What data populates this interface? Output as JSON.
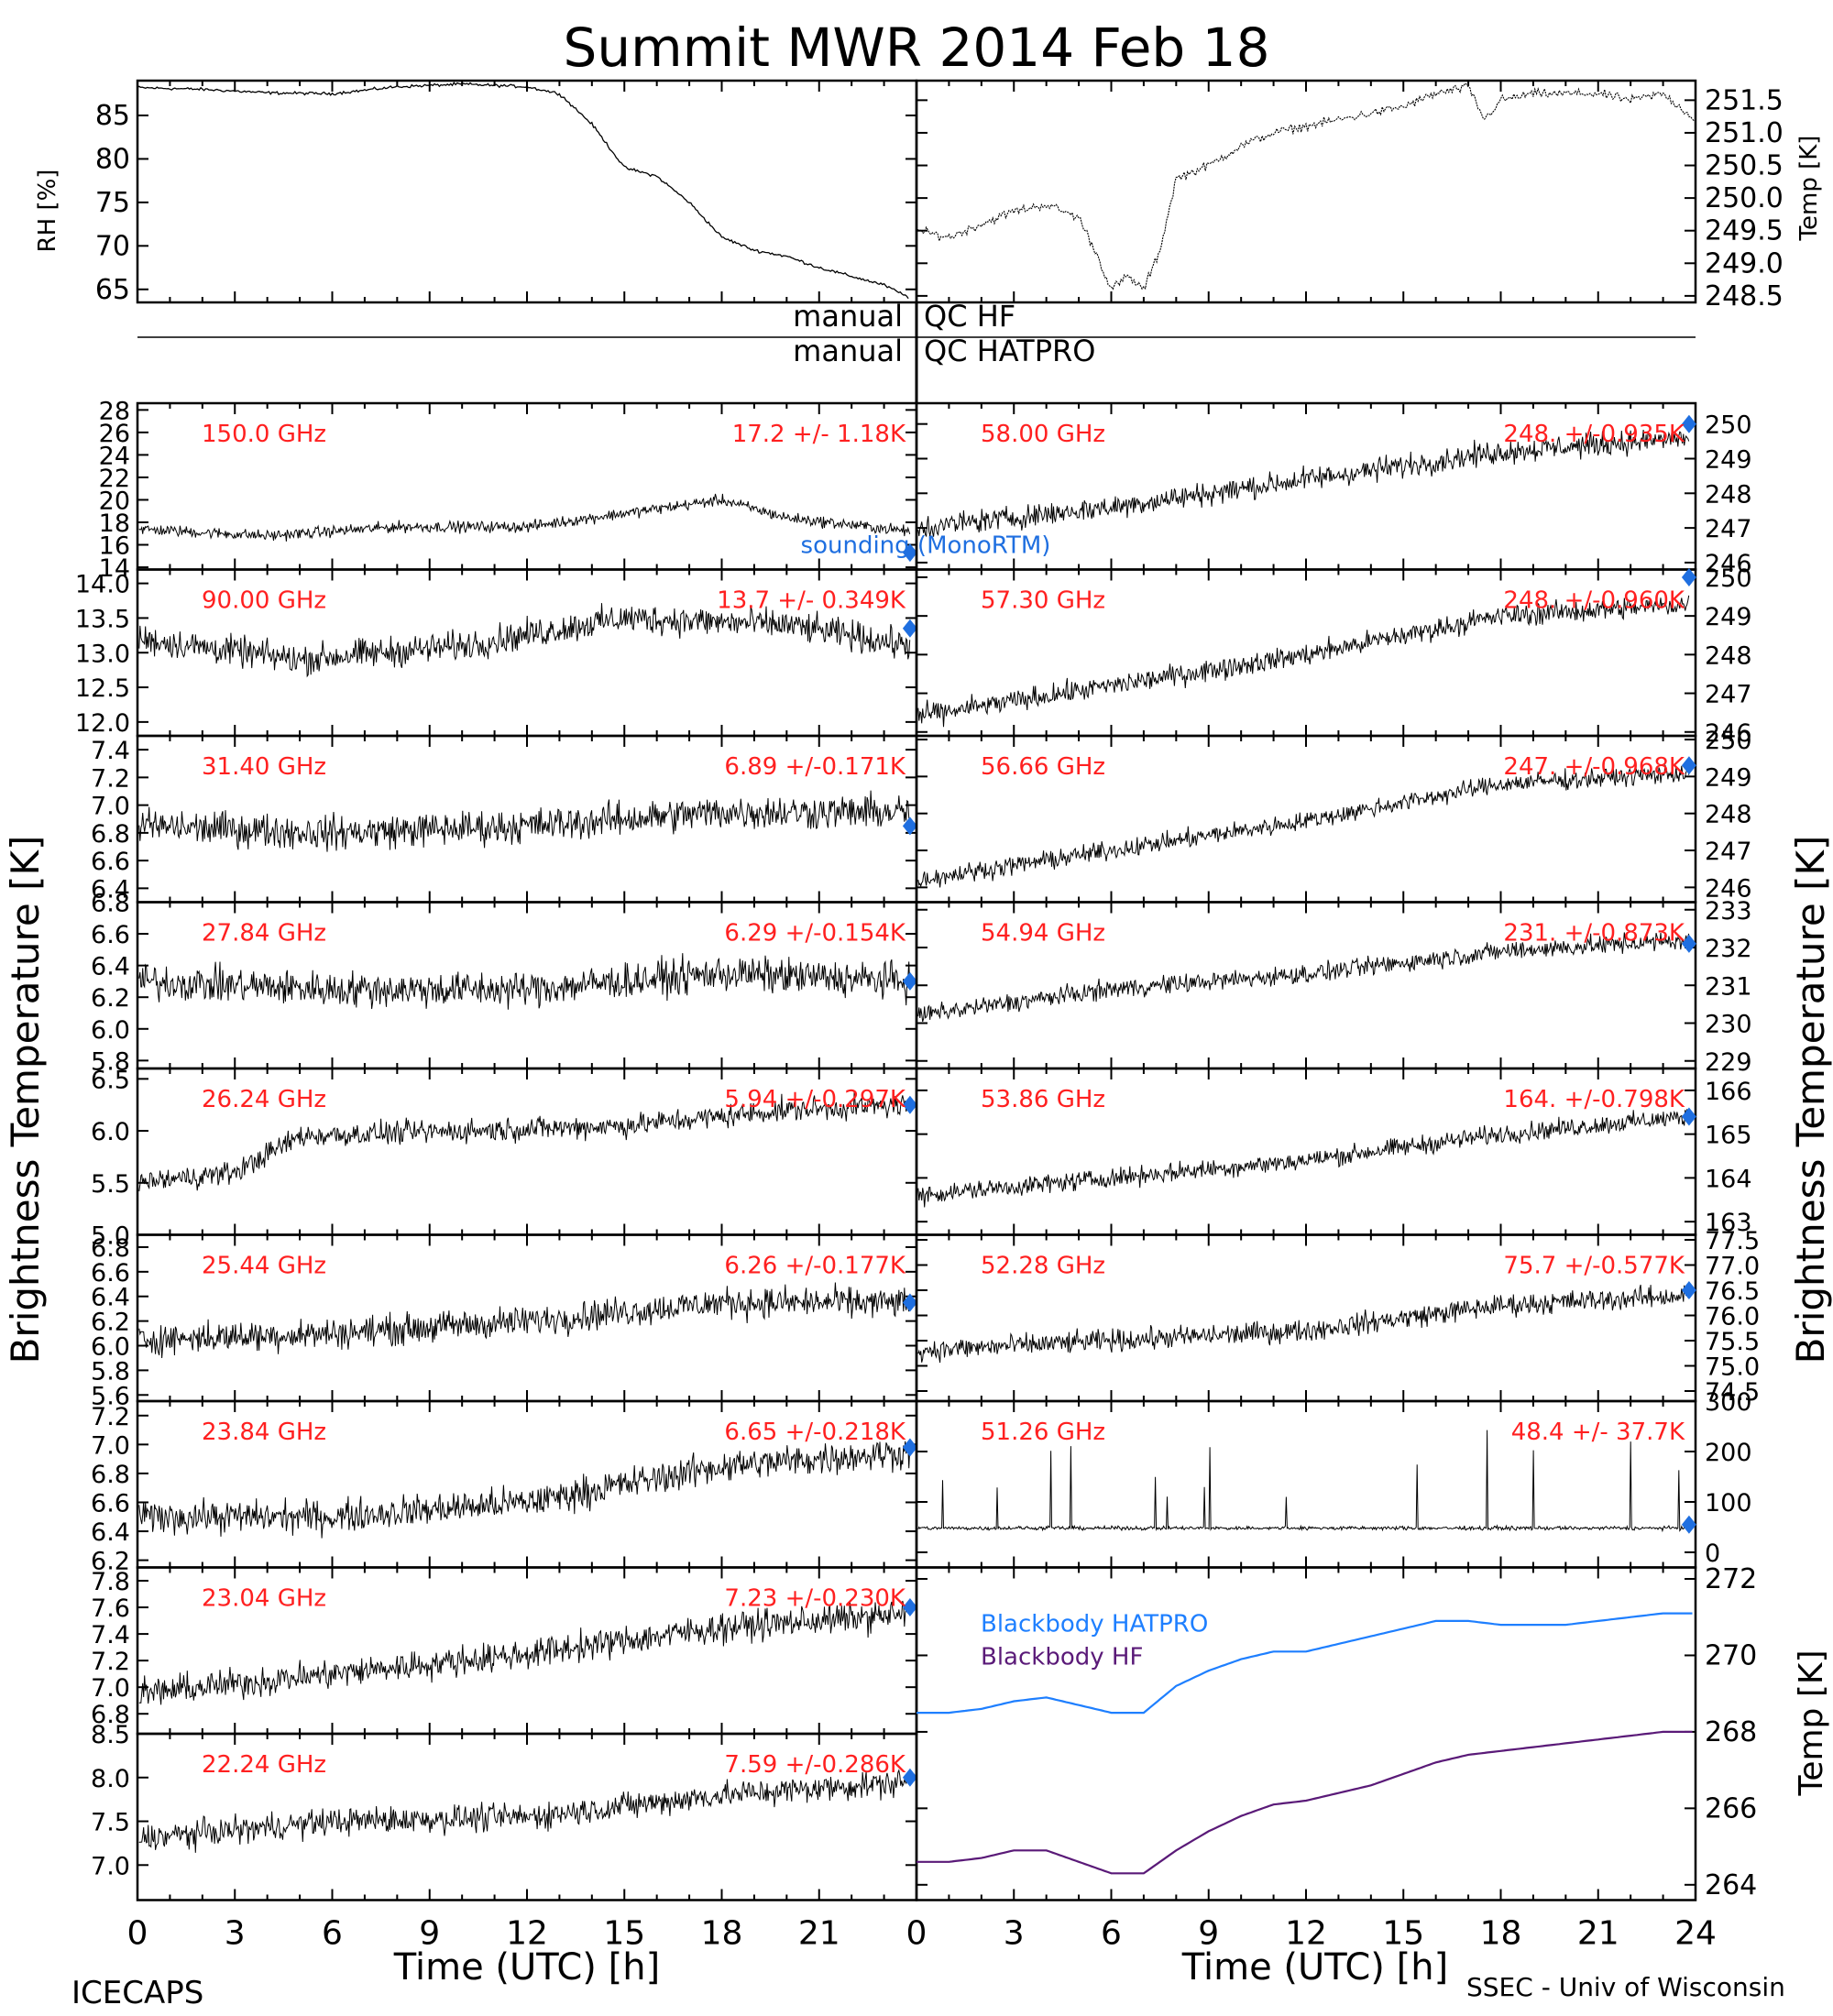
{
  "figure": {
    "title": "Summit MWR 2014 Feb 18",
    "footer_left": "ICECAPS",
    "footer_right": "SSEC - Univ of Wisconsin",
    "colors": {
      "axis": "#000000",
      "label": "#ff2020",
      "marker": "#1f6fe0",
      "hatpro": "#1e7fff",
      "hf": "#5a1a78"
    }
  },
  "qc_bar": {
    "left_text": "manual",
    "hf_text": "QC HF",
    "hatpro_text": "QC HATPRO"
  },
  "chart_data": [
    {
      "type": "line",
      "id": "rh",
      "ylabel": "RH [%]",
      "ylim": [
        63.5,
        89
      ],
      "yticks": [
        "65",
        "70",
        "75",
        "80",
        "85"
      ],
      "xlim": [
        0,
        24
      ],
      "x": [
        0,
        2,
        4,
        6,
        8,
        10,
        12,
        13,
        14,
        15,
        16,
        17,
        18,
        19,
        20,
        21,
        22,
        23,
        23.8
      ],
      "y": [
        88.2,
        88.0,
        87.6,
        87.5,
        88.3,
        88.6,
        88.3,
        87.5,
        84,
        79,
        78,
        75,
        71,
        69.5,
        68.8,
        67.5,
        66.5,
        65.5,
        64
      ]
    },
    {
      "type": "line",
      "id": "temp",
      "ylabel": "Temp [K]",
      "ylim": [
        248.4,
        251.8
      ],
      "yticks": [
        "248.5",
        "249.0",
        "249.5",
        "250.0",
        "250.5",
        "251.0",
        "251.5"
      ],
      "xlim": [
        0,
        24
      ],
      "x": [
        0,
        1,
        2,
        3,
        4,
        5,
        5.5,
        6,
        6.5,
        7,
        7.5,
        8,
        9,
        10,
        11,
        12,
        13,
        14,
        15,
        16,
        17,
        17.5,
        18,
        19,
        20,
        21,
        22,
        23,
        24
      ],
      "y": [
        249.5,
        249.4,
        249.6,
        249.8,
        249.9,
        249.7,
        249.2,
        248.6,
        248.8,
        248.6,
        249.2,
        250.3,
        250.5,
        250.8,
        251.0,
        251.1,
        251.2,
        251.3,
        251.4,
        251.6,
        251.7,
        251.2,
        251.5,
        251.6,
        251.6,
        251.6,
        251.5,
        251.6,
        251.2
      ]
    },
    {
      "type": "scatter",
      "id": "hf-150",
      "freq": "150.0 GHz",
      "stat": "17.2 +/-  1.18K",
      "ylim": [
        13.8,
        28.6
      ],
      "yticks": [
        "14",
        "16",
        "18",
        "20",
        "22",
        "24",
        "26",
        "28"
      ],
      "trend": [
        [
          0,
          17.4
        ],
        [
          4,
          16.8
        ],
        [
          8,
          17.6
        ],
        [
          12,
          17.6
        ],
        [
          16,
          19.2
        ],
        [
          18,
          20.0
        ],
        [
          20,
          18.4
        ],
        [
          23.8,
          17.2
        ]
      ],
      "noise": 0.8,
      "marker": [
        23.8,
        15.3
      ],
      "overlay": "sounding (MonoRTM)"
    },
    {
      "type": "scatter",
      "id": "hf-90",
      "freq": "90.00 GHz",
      "stat": "13.7 +/- 0.349K",
      "ylim": [
        11.8,
        14.2
      ],
      "yticks": [
        "12.0",
        "12.5",
        "13.0",
        "13.5",
        "14.0"
      ],
      "trend": [
        [
          0,
          13.2
        ],
        [
          5,
          12.9
        ],
        [
          10,
          13.1
        ],
        [
          15,
          13.5
        ],
        [
          20,
          13.4
        ],
        [
          23.8,
          13.1
        ]
      ],
      "noise": 0.35,
      "marker": [
        23.8,
        13.35
      ]
    },
    {
      "type": "scatter",
      "id": "hatpro-31",
      "freq": "31.40 GHz",
      "stat": "6.89 +/-0.171K",
      "ylim": [
        6.3,
        7.5
      ],
      "yticks": [
        "6.4",
        "6.6",
        "6.8",
        "7.0",
        "7.2",
        "7.4"
      ],
      "trend": [
        [
          0,
          6.85
        ],
        [
          6,
          6.8
        ],
        [
          12,
          6.85
        ],
        [
          18,
          6.95
        ],
        [
          23.8,
          6.95
        ]
      ],
      "noise": 0.2,
      "marker": [
        23.8,
        6.85
      ]
    },
    {
      "type": "scatter",
      "id": "hatpro-27",
      "freq": "27.84 GHz",
      "stat": "6.29 +/-0.154K",
      "ylim": [
        5.75,
        6.8
      ],
      "yticks": [
        "5.8",
        "6.0",
        "6.2",
        "6.4",
        "6.6",
        "6.8"
      ],
      "trend": [
        [
          0,
          6.3
        ],
        [
          6,
          6.25
        ],
        [
          12,
          6.25
        ],
        [
          18,
          6.35
        ],
        [
          23.8,
          6.3
        ]
      ],
      "noise": 0.18,
      "marker": [
        23.8,
        6.3
      ]
    },
    {
      "type": "scatter",
      "id": "hatpro-26",
      "freq": "26.24 GHz",
      "stat": "5.94 +/-0.297K",
      "ylim": [
        5.0,
        6.6
      ],
      "yticks": [
        "5.0",
        "5.5",
        "6.0",
        "6.5"
      ],
      "trend": [
        [
          0,
          5.5
        ],
        [
          3,
          5.6
        ],
        [
          5,
          5.95
        ],
        [
          10,
          6.0
        ],
        [
          15,
          6.05
        ],
        [
          20,
          6.2
        ],
        [
          23.8,
          6.25
        ]
      ],
      "noise": 0.18,
      "marker": [
        23.8,
        6.25
      ]
    },
    {
      "type": "scatter",
      "id": "hatpro-25",
      "freq": "25.44 GHz",
      "stat": "6.26 +/-0.177K",
      "ylim": [
        5.55,
        6.9
      ],
      "yticks": [
        "5.6",
        "5.8",
        "6.0",
        "6.2",
        "6.4",
        "6.6",
        "6.8"
      ],
      "trend": [
        [
          0,
          6.05
        ],
        [
          6,
          6.1
        ],
        [
          12,
          6.2
        ],
        [
          18,
          6.35
        ],
        [
          23.8,
          6.35
        ]
      ],
      "noise": 0.2,
      "marker": [
        23.8,
        6.35
      ]
    },
    {
      "type": "scatter",
      "id": "hatpro-23.8",
      "freq": "23.84 GHz",
      "stat": "6.65 +/-0.218K",
      "ylim": [
        6.15,
        7.3
      ],
      "yticks": [
        "6.2",
        "6.4",
        "6.6",
        "6.8",
        "7.0",
        "7.2"
      ],
      "trend": [
        [
          0,
          6.5
        ],
        [
          6,
          6.5
        ],
        [
          12,
          6.6
        ],
        [
          18,
          6.85
        ],
        [
          23.8,
          6.95
        ]
      ],
      "noise": 0.18,
      "marker": [
        23.8,
        6.98
      ]
    },
    {
      "type": "scatter",
      "id": "hatpro-23.0",
      "freq": "23.04 GHz",
      "stat": "7.23 +/-0.230K",
      "ylim": [
        6.65,
        7.9
      ],
      "yticks": [
        "6.8",
        "7.0",
        "7.2",
        "7.4",
        "7.6",
        "7.8"
      ],
      "trend": [
        [
          0,
          6.95
        ],
        [
          6,
          7.1
        ],
        [
          12,
          7.25
        ],
        [
          18,
          7.45
        ],
        [
          23.8,
          7.55
        ]
      ],
      "noise": 0.18,
      "marker": [
        23.8,
        7.6
      ]
    },
    {
      "type": "scatter",
      "id": "hatpro-22",
      "freq": "22.24 GHz",
      "stat": "7.59 +/-0.286K",
      "ylim": [
        6.6,
        8.5
      ],
      "yticks": [
        "7.0",
        "7.5",
        "8.0",
        "8.5"
      ],
      "trend": [
        [
          0,
          7.3
        ],
        [
          6,
          7.5
        ],
        [
          12,
          7.55
        ],
        [
          18,
          7.8
        ],
        [
          23.8,
          7.95
        ]
      ],
      "noise": 0.25,
      "marker": [
        23.8,
        8.0
      ]
    },
    {
      "type": "scatter",
      "id": "hatpro-58",
      "freq": "58.00 GHz",
      "stat": "248. +/-0.935K",
      "ylim": [
        245.8,
        250.6
      ],
      "yticks": [
        "246",
        "247",
        "248",
        "249",
        "250"
      ],
      "trend": [
        [
          0,
          247.0
        ],
        [
          6,
          247.6
        ],
        [
          12,
          248.4
        ],
        [
          18,
          249.2
        ],
        [
          23.8,
          249.6
        ]
      ],
      "noise": 0.55,
      "marker": [
        23.8,
        250.0
      ]
    },
    {
      "type": "scatter",
      "id": "hatpro-57.3",
      "freq": "57.30 GHz",
      "stat": "248. +/-0.960K",
      "ylim": [
        245.9,
        250.2
      ],
      "yticks": [
        "246",
        "247",
        "248",
        "249",
        "250"
      ],
      "trend": [
        [
          0,
          246.4
        ],
        [
          6,
          247.2
        ],
        [
          12,
          248.0
        ],
        [
          18,
          249.0
        ],
        [
          23.8,
          249.3
        ]
      ],
      "noise": 0.45,
      "marker": [
        23.8,
        250.0
      ]
    },
    {
      "type": "scatter",
      "id": "hatpro-56.66",
      "freq": "56.66 GHz",
      "stat": "247. +/-0.968K",
      "ylim": [
        245.6,
        250.1
      ],
      "yticks": [
        "246",
        "247",
        "248",
        "249",
        "250"
      ],
      "trend": [
        [
          0,
          246.2
        ],
        [
          6,
          247.0
        ],
        [
          12,
          247.8
        ],
        [
          18,
          248.8
        ],
        [
          23.8,
          249.1
        ]
      ],
      "noise": 0.4,
      "marker": [
        23.8,
        249.3
      ]
    },
    {
      "type": "scatter",
      "id": "hatpro-54.94",
      "freq": "54.94 GHz",
      "stat": "231. +/-0.873K",
      "ylim": [
        228.8,
        233.2
      ],
      "yticks": [
        "229",
        "230",
        "231",
        "232",
        "233"
      ],
      "trend": [
        [
          0,
          230.2
        ],
        [
          6,
          230.9
        ],
        [
          12,
          231.3
        ],
        [
          18,
          231.9
        ],
        [
          23.8,
          232.2
        ]
      ],
      "noise": 0.4,
      "marker": [
        23.8,
        232.1
      ]
    },
    {
      "type": "scatter",
      "id": "hatpro-53.86",
      "freq": "53.86 GHz",
      "stat": "164. +/-0.798K",
      "ylim": [
        162.7,
        166.5
      ],
      "yticks": [
        "163",
        "164",
        "165",
        "166"
      ],
      "trend": [
        [
          0,
          163.6
        ],
        [
          6,
          164.0
        ],
        [
          12,
          164.4
        ],
        [
          18,
          165.0
        ],
        [
          23.8,
          165.4
        ]
      ],
      "noise": 0.35,
      "marker": [
        23.8,
        165.4
      ]
    },
    {
      "type": "scatter",
      "id": "hatpro-52.28",
      "freq": "52.28 GHz",
      "stat": "75.7 +/-0.577K",
      "ylim": [
        74.3,
        77.6
      ],
      "yticks": [
        "74.5",
        "75.0",
        "75.5",
        "76.0",
        "76.5",
        "77.0",
        "77.5"
      ],
      "trend": [
        [
          0,
          75.3
        ],
        [
          6,
          75.5
        ],
        [
          12,
          75.7
        ],
        [
          18,
          76.2
        ],
        [
          23.8,
          76.4
        ]
      ],
      "noise": 0.35,
      "marker": [
        23.8,
        76.5
      ]
    },
    {
      "type": "scatter",
      "id": "hatpro-51.26",
      "freq": "51.26 GHz",
      "stat": "48.4 +/-  37.7K",
      "ylim": [
        -30,
        300
      ],
      "yticks": [
        "0",
        "100",
        "200",
        "300"
      ],
      "trend": [
        [
          0,
          48
        ],
        [
          24,
          48
        ]
      ],
      "noise": 6,
      "marker": [
        23.8,
        55
      ]
    },
    {
      "type": "line",
      "id": "blackbody",
      "ylabel": "Temp [K]",
      "ylim": [
        263.6,
        272.3
      ],
      "yticks": [
        "264",
        "266",
        "268",
        "270",
        "272"
      ],
      "xlim": [
        0,
        24
      ],
      "series": [
        {
          "name": "Blackbody HATPRO",
          "color": "#1e7fff",
          "x": [
            0,
            1,
            2,
            3,
            4,
            5,
            6,
            7,
            8,
            9,
            10,
            11,
            12,
            13,
            14,
            15,
            16,
            17,
            18,
            19,
            20,
            21,
            22,
            23,
            24
          ],
          "y": [
            268.5,
            268.5,
            268.6,
            268.8,
            268.9,
            268.7,
            268.5,
            268.5,
            269.2,
            269.6,
            269.9,
            270.1,
            270.1,
            270.3,
            270.5,
            270.7,
            270.9,
            270.9,
            270.8,
            270.8,
            270.8,
            270.9,
            271.0,
            271.1,
            271.1
          ]
        },
        {
          "name": "Blackbody HF",
          "color": "#5a1a78",
          "x": [
            0,
            1,
            2,
            3,
            4,
            5,
            6,
            7,
            8,
            9,
            10,
            11,
            12,
            13,
            14,
            15,
            16,
            17,
            18,
            19,
            20,
            21,
            22,
            23,
            24
          ],
          "y": [
            264.6,
            264.6,
            264.7,
            264.9,
            264.9,
            264.6,
            264.3,
            264.3,
            264.9,
            265.4,
            265.8,
            266.1,
            266.2,
            266.4,
            266.6,
            266.9,
            267.2,
            267.4,
            267.5,
            267.6,
            267.7,
            267.8,
            267.9,
            268.0,
            268.0
          ]
        }
      ]
    }
  ],
  "axes": {
    "left_ylabel": "Brightness Temperature [K]",
    "right_ylabel": "Brightness Temperature [K]",
    "xlabel": "Time (UTC) [h]",
    "xticks": [
      "0",
      "3",
      "6",
      "9",
      "12",
      "15",
      "18",
      "21",
      "24"
    ],
    "xticks_left": [
      "0",
      "3",
      "6",
      "9",
      "12",
      "15",
      "18",
      "21"
    ]
  }
}
